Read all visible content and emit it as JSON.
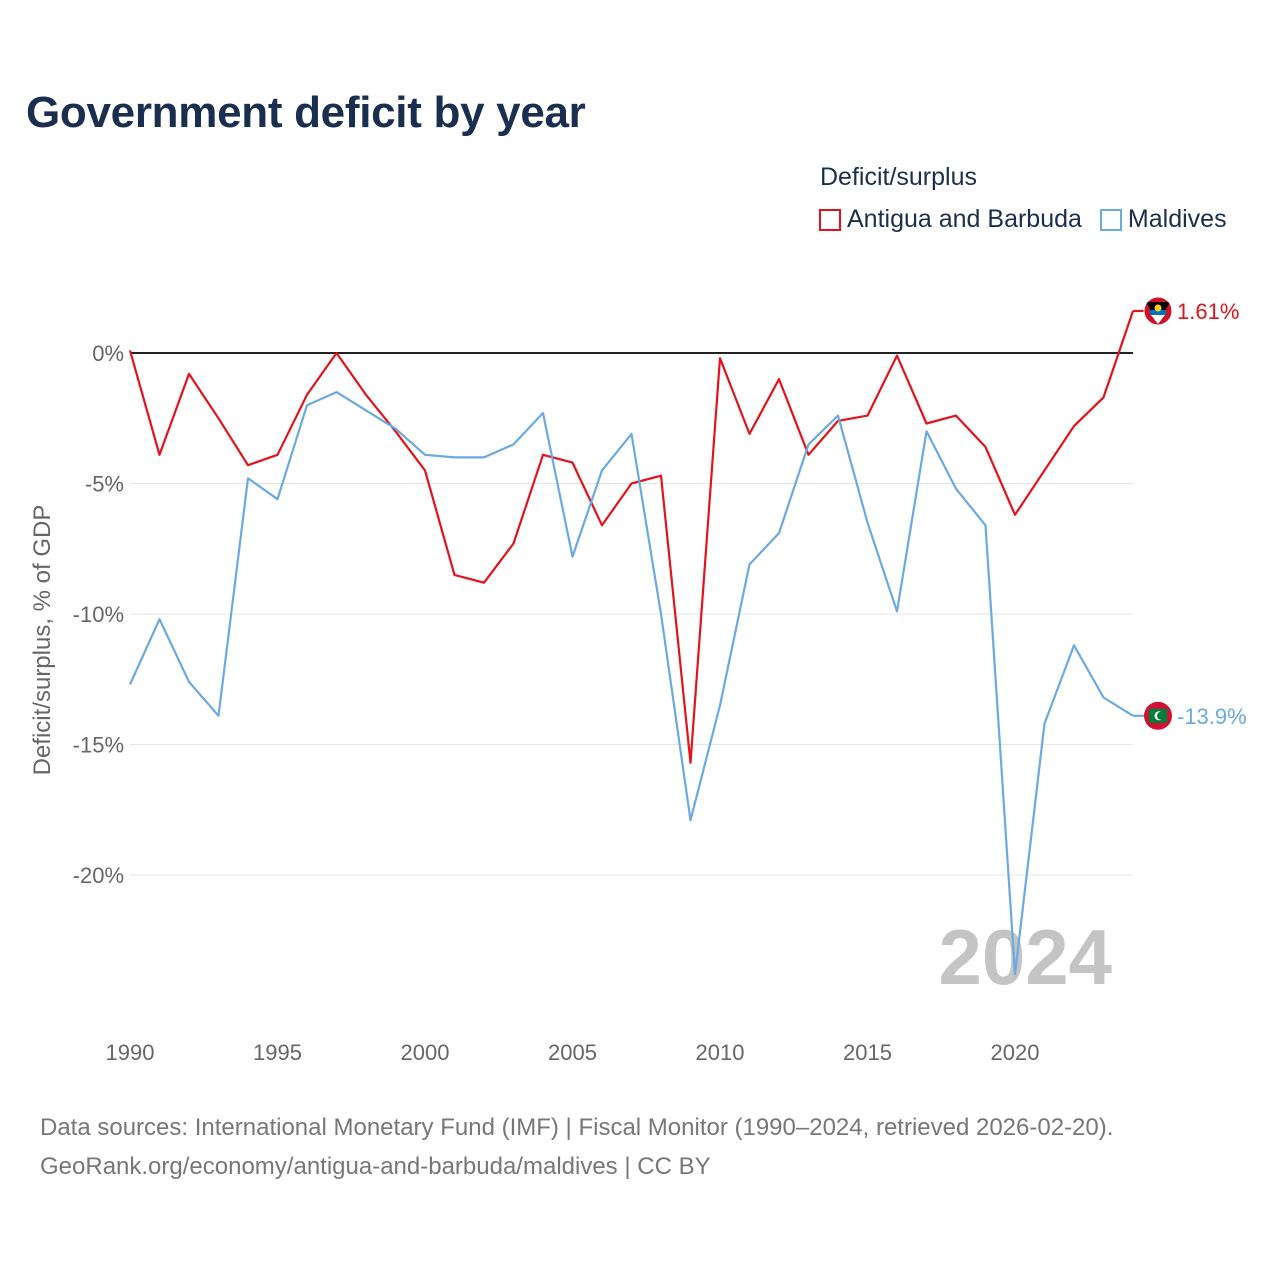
{
  "title": "Government deficit by year",
  "legend": {
    "title": "Deficit/surplus",
    "items": [
      {
        "label": "Antigua and Barbuda",
        "color": "#e3121b"
      },
      {
        "label": "Maldives",
        "color": "#6aa9e2"
      }
    ]
  },
  "source": {
    "line1": "Data sources: International Monetary Fund (IMF) | Fiscal Monitor (1990–2024, retrieved 2026-02-20).",
    "line2": "GeoRank.org/economy/antigua-and-barbuda/maldives | CC BY"
  },
  "chart_data": {
    "type": "line",
    "title": "Government deficit by year",
    "xlabel": "",
    "ylabel": "Deficit/surplus, % of GDP",
    "year_label": "2024",
    "x": [
      1990,
      1991,
      1992,
      1993,
      1994,
      1995,
      1996,
      1997,
      1998,
      1999,
      2000,
      2001,
      2002,
      2003,
      2004,
      2005,
      2006,
      2007,
      2008,
      2009,
      2010,
      2011,
      2012,
      2013,
      2014,
      2015,
      2016,
      2017,
      2018,
      2019,
      2020,
      2021,
      2022,
      2023,
      2024
    ],
    "xlim": [
      1990,
      2024
    ],
    "ylim": [
      -25,
      2
    ],
    "x_ticks": [
      1990,
      1995,
      2000,
      2005,
      2010,
      2015,
      2020
    ],
    "y_ticks": [
      0,
      -5,
      -10,
      -15,
      -20
    ],
    "y_tick_labels": [
      "0%",
      "-5%",
      "-10%",
      "-15%",
      "-20%"
    ],
    "series": [
      {
        "name": "Antigua and Barbuda",
        "color": "#e3121b",
        "end_label": "1.61%",
        "values": [
          0.1,
          -3.9,
          -0.8,
          -2.5,
          -4.3,
          -3.9,
          -1.6,
          0.0,
          -1.6,
          -3.0,
          -4.5,
          -8.5,
          -8.8,
          -7.3,
          -3.9,
          -4.2,
          -6.6,
          -5.0,
          -4.7,
          -15.7,
          -0.2,
          -3.1,
          -1.0,
          -3.9,
          -2.6,
          -2.4,
          -0.1,
          -2.7,
          -2.4,
          -3.6,
          -6.2,
          -4.5,
          -2.8,
          -1.7,
          1.61
        ]
      },
      {
        "name": "Maldives",
        "color": "#6aa9e2",
        "end_label": "-13.9%",
        "values": [
          -12.7,
          -10.2,
          -12.6,
          -13.9,
          -4.8,
          -5.6,
          -2.0,
          -1.5,
          -2.2,
          -2.9,
          -3.9,
          -4.0,
          -4.0,
          -3.5,
          -2.3,
          -7.8,
          -4.5,
          -3.1,
          -10.0,
          -17.9,
          -13.5,
          -8.1,
          -6.9,
          -3.5,
          -2.4,
          -6.5,
          -9.9,
          -3.0,
          -5.2,
          -6.6,
          -23.8,
          -14.2,
          -11.2,
          -13.2,
          -13.9
        ]
      }
    ]
  }
}
